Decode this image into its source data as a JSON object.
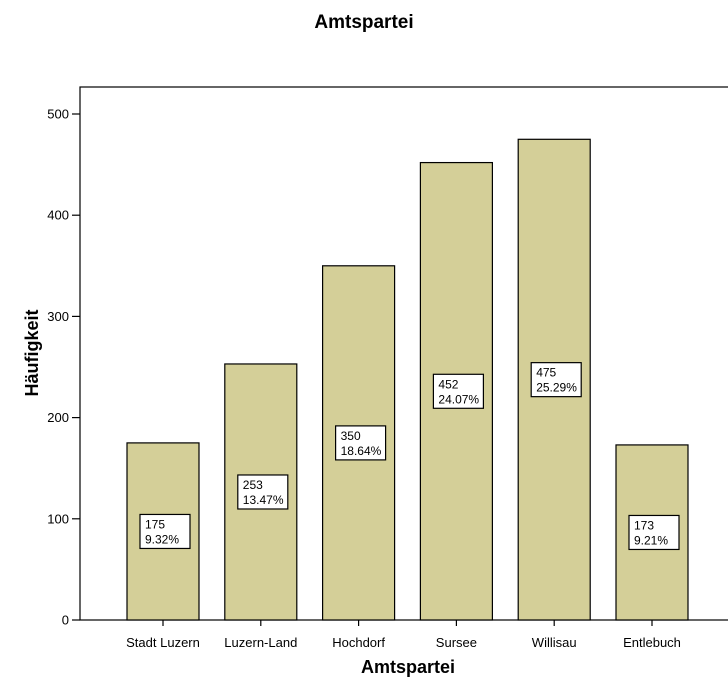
{
  "chart_data": {
    "type": "bar",
    "title": "Amtspartei",
    "xlabel": "Amtspartei",
    "ylabel": "Häufigkeit",
    "categories": [
      "Stadt Luzern",
      "Luzern-Land",
      "Hochdorf",
      "Sursee",
      "Willisau",
      "Entlebuch"
    ],
    "values": [
      175,
      253,
      350,
      452,
      475,
      173
    ],
    "percent_labels": [
      "9.32%",
      "13.47%",
      "18.64%",
      "24.07%",
      "25.29%",
      "9.21%"
    ],
    "yticks": [
      0,
      100,
      200,
      300,
      400,
      500
    ],
    "ylim": [
      0,
      500
    ],
    "grid": false,
    "legend": "none",
    "bar_color": "#d4cf98",
    "bar_outline_color": "#000000"
  }
}
